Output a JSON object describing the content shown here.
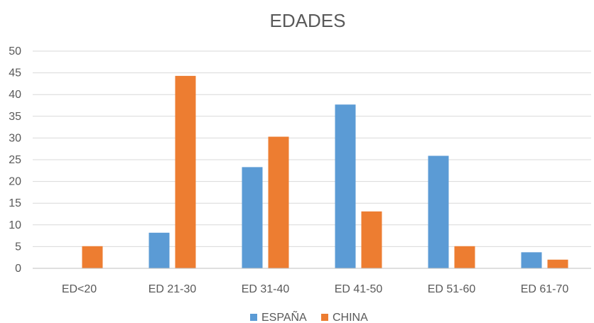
{
  "chart_data": {
    "type": "bar",
    "title": "EDADES",
    "categories": [
      "ED<20",
      "ED 21-30",
      "ED 31-40",
      "ED 41-50",
      "ED 51-60",
      "ED 61-70"
    ],
    "series": [
      {
        "name": "ESPAÑA",
        "color": "#5b9bd5",
        "values": [
          0,
          8.2,
          23.3,
          37.7,
          25.9,
          3.7
        ]
      },
      {
        "name": "CHINA",
        "color": "#ed7d31",
        "values": [
          5.1,
          44.3,
          30.3,
          13.1,
          5.1,
          2.0
        ]
      }
    ],
    "ylim": [
      0,
      50
    ],
    "yticks": [
      "0",
      "5",
      "10",
      "15",
      "20",
      "25",
      "30",
      "35",
      "40",
      "45",
      "50"
    ],
    "grid": true,
    "legend_position": "bottom"
  }
}
